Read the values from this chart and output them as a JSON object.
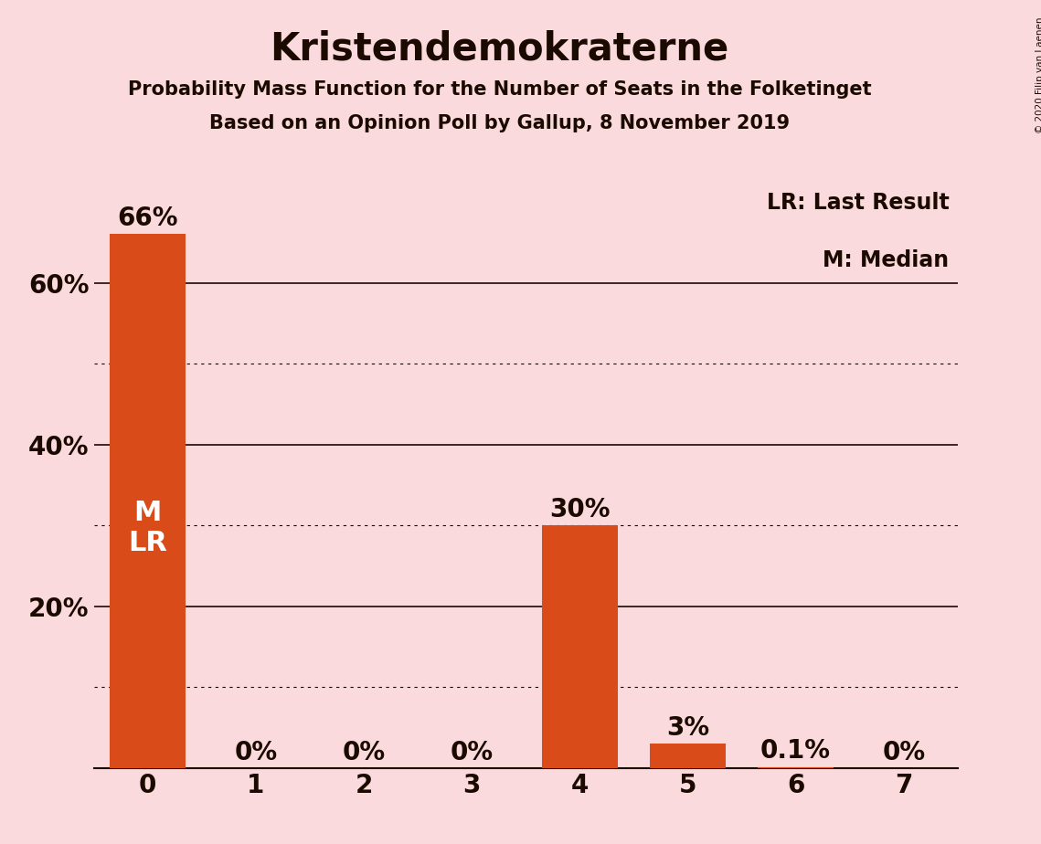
{
  "title": "Kristendemokraterne",
  "subtitle1": "Probability Mass Function for the Number of Seats in the Folketinget",
  "subtitle2": "Based on an Opinion Poll by Gallup, 8 November 2019",
  "copyright": "© 2020 Filip van Laenen",
  "categories": [
    0,
    1,
    2,
    3,
    4,
    5,
    6,
    7
  ],
  "values": [
    0.66,
    0.0,
    0.0,
    0.0,
    0.3,
    0.03,
    0.001,
    0.0
  ],
  "bar_labels": [
    "66%",
    "0%",
    "0%",
    "0%",
    "30%",
    "3%",
    "0.1%",
    "0%"
  ],
  "bar_color": "#d94c1a",
  "background_color": "#fadadd",
  "text_color": "#1a0a00",
  "ylim": [
    0,
    0.72
  ],
  "yticks_labeled": [
    0.2,
    0.4,
    0.6
  ],
  "ytick_labels": [
    "20%",
    "40%",
    "60%"
  ],
  "solid_gridlines": [
    0.2,
    0.4,
    0.6
  ],
  "dotted_gridlines": [
    0.1,
    0.3,
    0.5
  ],
  "legend_lr": "LR: Last Result",
  "legend_m": "M: Median",
  "title_fontsize": 30,
  "subtitle_fontsize": 15,
  "axis_tick_fontsize": 20,
  "bar_label_fontsize": 20,
  "inside_bar_fontsize": 22,
  "legend_fontsize": 17
}
